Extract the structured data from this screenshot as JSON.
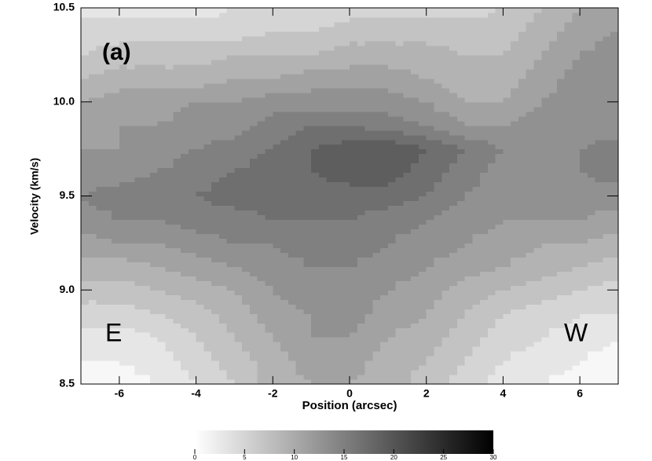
{
  "chart_data": {
    "type": "contour",
    "xlabel": "Position (arcsec)",
    "ylabel": "Velocity (km/s)",
    "annotations": [
      "(a)",
      "E",
      "W"
    ],
    "x": [
      -7,
      -6,
      -5,
      -4,
      -3,
      -2,
      -1,
      0,
      1,
      2,
      3,
      4,
      5,
      6,
      7
    ],
    "y": [
      8.5,
      8.625,
      8.75,
      8.875,
      9.0,
      9.125,
      9.25,
      9.375,
      9.5,
      9.625,
      9.75,
      9.875,
      10.0,
      10.125,
      10.25,
      10.375,
      10.5
    ],
    "z": [
      [
        1,
        1,
        2,
        4,
        6,
        9,
        10,
        10,
        9,
        7,
        5,
        3,
        2,
        1,
        1
      ],
      [
        2,
        2,
        3,
        5,
        7,
        9,
        11,
        11,
        9,
        8,
        6,
        4,
        3,
        2,
        1
      ],
      [
        3,
        3,
        4,
        6,
        8,
        10,
        12,
        12,
        10,
        9,
        7,
        5,
        4,
        3,
        2
      ],
      [
        5,
        5,
        6,
        7,
        9,
        11,
        12,
        13,
        11,
        10,
        8,
        6,
        5,
        4,
        4
      ],
      [
        7,
        7,
        8,
        9,
        10,
        12,
        13,
        13,
        12,
        11,
        9,
        8,
        7,
        6,
        5
      ],
      [
        9,
        9,
        10,
        11,
        12,
        13,
        14,
        14,
        13,
        12,
        11,
        10,
        9,
        8,
        7
      ],
      [
        11,
        12,
        12,
        13,
        14,
        14,
        15,
        15,
        14,
        13,
        12,
        11,
        10,
        10,
        9
      ],
      [
        13,
        14,
        14,
        15,
        15,
        16,
        16,
        16,
        15,
        14,
        13,
        12,
        12,
        12,
        11
      ],
      [
        14,
        15,
        16,
        16,
        17,
        17,
        17,
        17,
        17,
        16,
        14,
        13,
        13,
        13,
        13
      ],
      [
        13,
        13,
        14,
        15,
        16,
        17,
        18,
        19,
        19,
        17,
        15,
        13,
        13,
        14,
        15
      ],
      [
        12,
        12,
        13,
        14,
        15,
        16,
        18,
        19,
        20,
        18,
        16,
        14,
        13,
        14,
        15
      ],
      [
        11,
        12,
        12,
        13,
        13,
        15,
        16,
        16,
        15,
        14,
        12,
        12,
        13,
        13,
        13
      ],
      [
        10,
        11,
        11,
        12,
        12,
        13,
        13,
        13,
        13,
        12,
        10,
        10,
        12,
        13,
        13
      ],
      [
        8,
        9,
        9,
        9,
        10,
        10,
        11,
        11,
        11,
        10,
        9,
        9,
        11,
        13,
        13
      ],
      [
        6,
        7,
        7,
        7,
        8,
        8,
        8,
        9,
        9,
        9,
        8,
        8,
        10,
        12,
        13
      ],
      [
        5,
        5,
        5,
        5,
        5,
        6,
        6,
        7,
        7,
        7,
        7,
        7,
        9,
        11,
        12
      ],
      [
        3,
        3,
        3,
        3,
        4,
        4,
        4,
        5,
        5,
        5,
        5,
        6,
        8,
        10,
        11
      ]
    ],
    "contour_levels": [
      0,
      2,
      4,
      6,
      8,
      10,
      12,
      14,
      16,
      18,
      20,
      22
    ],
    "xlim": [
      -7,
      7
    ],
    "xticks": [
      -6,
      -4,
      -2,
      0,
      2,
      4,
      6
    ],
    "ylim": [
      8.5,
      10.5
    ],
    "yticks": [
      {
        "value": 8.5,
        "label": "8.5"
      },
      {
        "value": 9,
        "label": "9.0"
      },
      {
        "value": 9.5,
        "label": "9.5"
      },
      {
        "value": 10,
        "label": "10.0"
      },
      {
        "value": 10.5,
        "label": "10.5"
      }
    ],
    "colorbar": {
      "lim": [
        0,
        30
      ],
      "ticks": [
        0,
        5,
        10,
        15,
        20,
        25,
        30
      ]
    }
  }
}
